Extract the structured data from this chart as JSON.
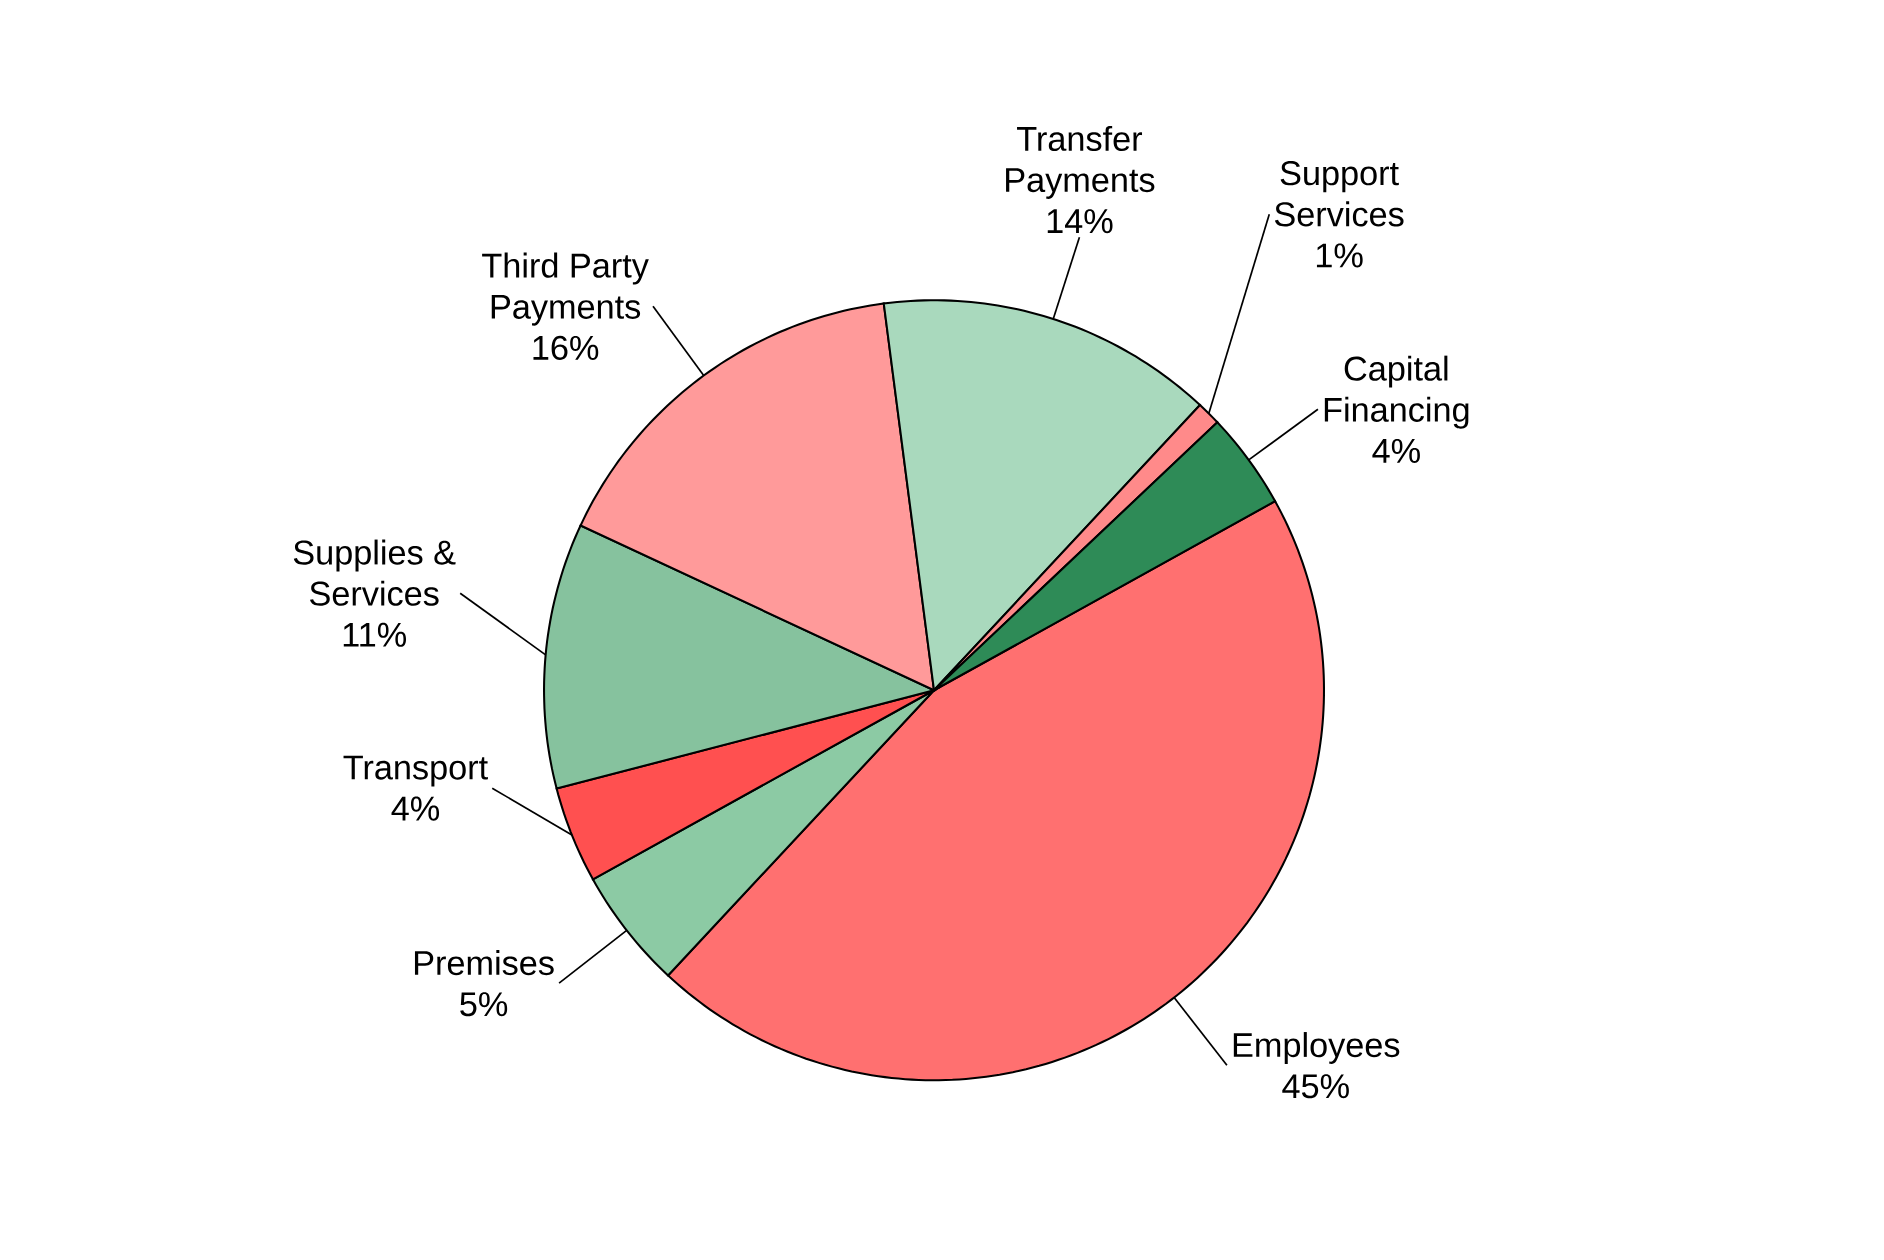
{
  "chart_data": {
    "type": "pie",
    "categories": [
      "Employees",
      "Premises",
      "Transport",
      "Supplies & Services",
      "Third Party Payments",
      "Transfer Payments",
      "Support Services",
      "Capital Financing"
    ],
    "values": [
      45,
      5,
      4,
      11,
      16,
      14,
      1,
      4
    ],
    "value_labels": [
      "45%",
      "5%",
      "4%",
      "11%",
      "16%",
      "14%",
      "1%",
      "4%"
    ],
    "colors": [
      "#ff7070",
      "#8ccaa4",
      "#ff5050",
      "#86c29e",
      "#ff9a9a",
      "#a9d9bd",
      "#ff8a8a",
      "#2e8b57"
    ]
  }
}
